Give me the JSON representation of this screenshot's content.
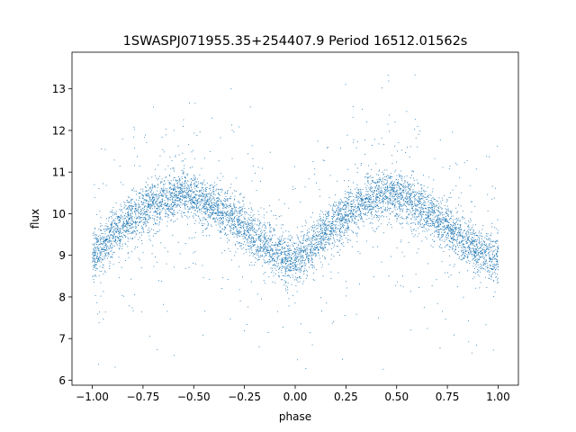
{
  "chart_data": {
    "type": "scatter",
    "title": "1SWASPJ071955.35+254407.9 Period 16512.01562s",
    "xlabel": "phase",
    "ylabel": "flux",
    "xlim": [
      -1.1,
      1.1
    ],
    "ylim": [
      5.88,
      13.88
    ],
    "xticks": [
      -1.0,
      -0.75,
      -0.5,
      -0.25,
      0.0,
      0.25,
      0.5,
      0.75,
      1.0
    ],
    "xtick_labels": [
      "−1.00",
      "−0.75",
      "−0.50",
      "−0.25",
      "0.00",
      "0.25",
      "0.50",
      "0.75",
      "1.00"
    ],
    "yticks": [
      6,
      7,
      8,
      9,
      10,
      11,
      12,
      13
    ],
    "ytick_labels": [
      "6",
      "7",
      "8",
      "9",
      "10",
      "11",
      "12",
      "13"
    ],
    "grid": false,
    "legend": "none",
    "marker_color": "#1f77b4",
    "series": [
      {
        "x": [
          -1.0,
          -0.9,
          -0.8,
          -0.7,
          -0.6,
          -0.55,
          -0.5,
          -0.4,
          -0.3,
          -0.2,
          -0.1,
          -0.02,
          0.0,
          0.1,
          0.2,
          0.3,
          0.4,
          0.45,
          0.5,
          0.6,
          0.7,
          0.8,
          0.9,
          1.0
        ],
        "y": [
          8.9,
          9.5,
          9.95,
          10.25,
          10.45,
          10.5,
          10.4,
          10.15,
          9.85,
          9.45,
          9.05,
          8.85,
          8.85,
          9.3,
          9.8,
          10.15,
          10.4,
          10.5,
          10.45,
          10.2,
          9.9,
          9.5,
          9.1,
          8.9
        ]
      }
    ]
  }
}
